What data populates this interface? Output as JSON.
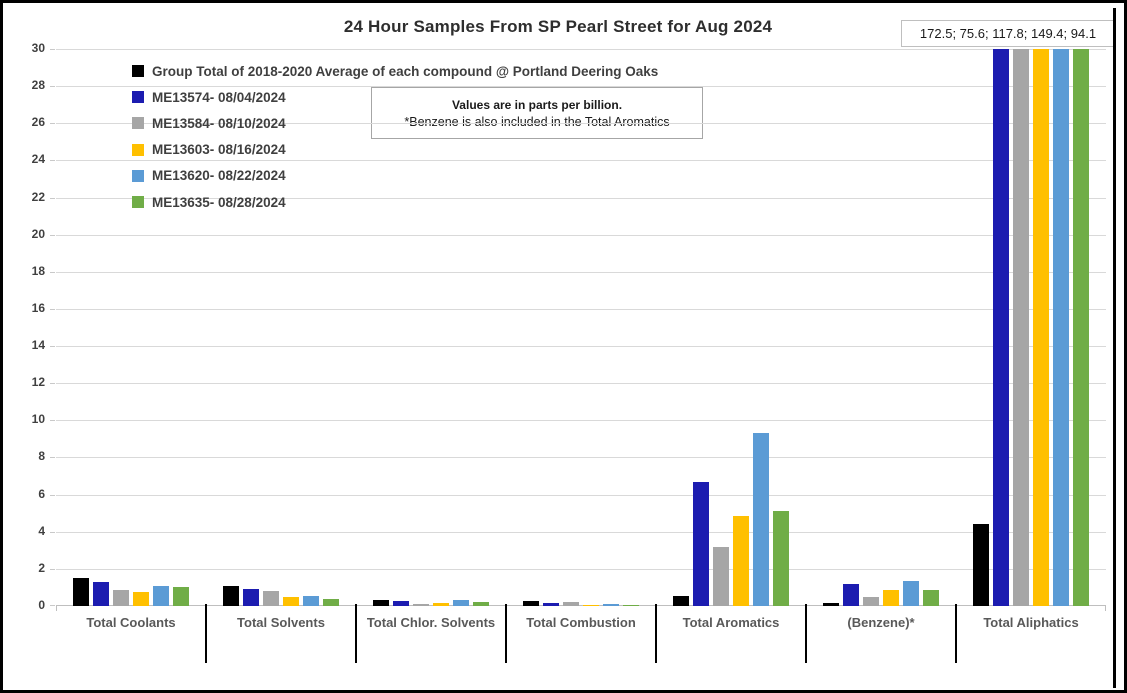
{
  "title": "24 Hour Samples From SP Pearl Street for Aug 2024",
  "value_box": "172.5; 75.6; 117.8; 149.4; 94.1",
  "note_box": {
    "line1": "Values are in parts per billion.",
    "line2": "*Benzene is also included in the Total Aromatics"
  },
  "colors": {
    "gridline": "#d9d9d9",
    "axis_line": "#bfbfbf",
    "separator": "#000000",
    "label_text": "#595959",
    "legend_text": "#3f3f3f"
  },
  "chart_data": {
    "type": "bar",
    "title": "24 Hour Samples From SP Pearl Street for Aug 2024",
    "categories": [
      "Total Coolants",
      "Total Solvents",
      "Total Chlor. Solvents",
      "Total Combustion",
      "Total Aromatics",
      "(Benzene)*",
      "Total Aliphatics"
    ],
    "series": [
      {
        "name": "Group Total of 2018-2020 Average of each compound @ Portland Deering Oaks",
        "color": "#000000",
        "values": [
          1.5,
          1.1,
          0.33,
          0.27,
          0.55,
          0.15,
          4.4
        ]
      },
      {
        "name": "ME13574- 08/04/2024",
        "color": "#1c1cb0",
        "values": [
          1.3,
          0.9,
          0.28,
          0.17,
          6.7,
          1.2,
          172.5
        ]
      },
      {
        "name": "ME13584- 08/10/2024",
        "color": "#a6a6a6",
        "values": [
          0.85,
          0.8,
          0.12,
          0.23,
          3.2,
          0.5,
          75.6
        ]
      },
      {
        "name": "ME13603- 08/16/2024",
        "color": "#ffc000",
        "values": [
          0.75,
          0.5,
          0.15,
          0.08,
          4.85,
          0.85,
          117.8
        ]
      },
      {
        "name": "ME13620- 08/22/2024",
        "color": "#5b9bd5",
        "values": [
          1.1,
          0.55,
          0.3,
          0.1,
          9.3,
          1.35,
          149.4
        ]
      },
      {
        "name": "ME13635- 08/28/2024",
        "color": "#70ad47",
        "values": [
          1.05,
          0.4,
          0.2,
          0.07,
          5.1,
          0.85,
          94.1
        ]
      }
    ],
    "y_axis": {
      "min": 0,
      "max": 30,
      "step": 2
    },
    "grid": true,
    "legend_position": "top-left",
    "note": "Total Aliphatics sample bars exceed the y-axis max of 30 and are clipped; their actual values are listed in value_box"
  }
}
